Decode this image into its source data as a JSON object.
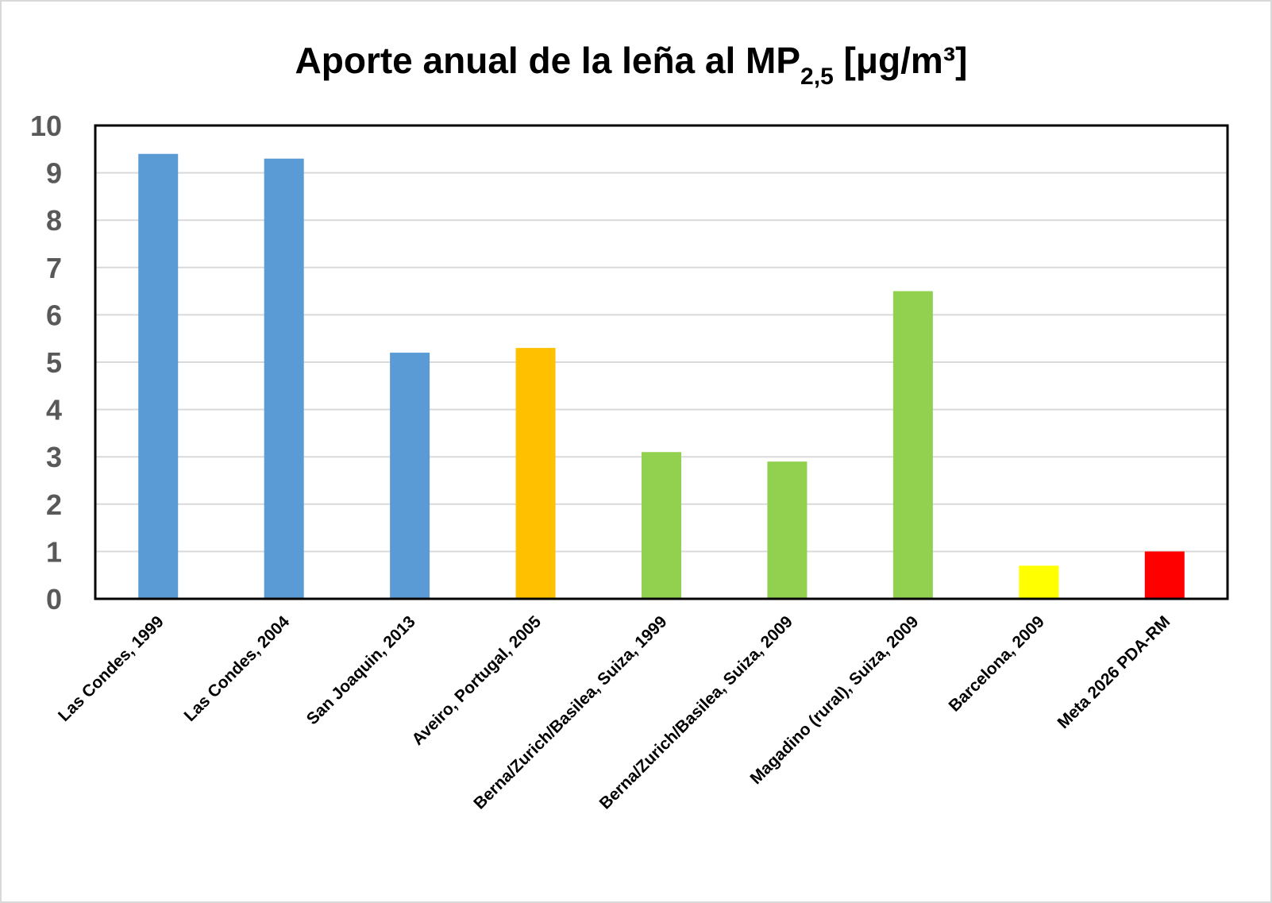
{
  "chart_data": {
    "type": "bar",
    "title": "Aporte anual de la leña al MP",
    "title_subscript": "2,5",
    "title_suffix": " [μg/m³]",
    "categories": [
      "Las Condes, 1999",
      "Las Condes, 2004",
      "San Joaquin, 2013",
      "Aveiro, Portugal, 2005",
      "Berna/Zurich/Basilea, Suiza, 1999",
      "Berna/Zurich/Basilea, Suiza, 2009",
      "Magadino (rural), Suiza, 2009",
      "Barcelona, 2009",
      "Meta 2026 PDA-RM"
    ],
    "values": [
      9.4,
      9.3,
      5.2,
      5.3,
      3.1,
      2.9,
      6.5,
      0.7,
      1.0
    ],
    "colors": [
      "#5b9bd5",
      "#5b9bd5",
      "#5b9bd5",
      "#ffc000",
      "#92d050",
      "#92d050",
      "#92d050",
      "#ffff00",
      "#ff0000"
    ],
    "ylim": [
      0,
      10
    ],
    "yticks": [
      0,
      1,
      2,
      3,
      4,
      5,
      6,
      7,
      8,
      9,
      10
    ],
    "grid": true
  }
}
